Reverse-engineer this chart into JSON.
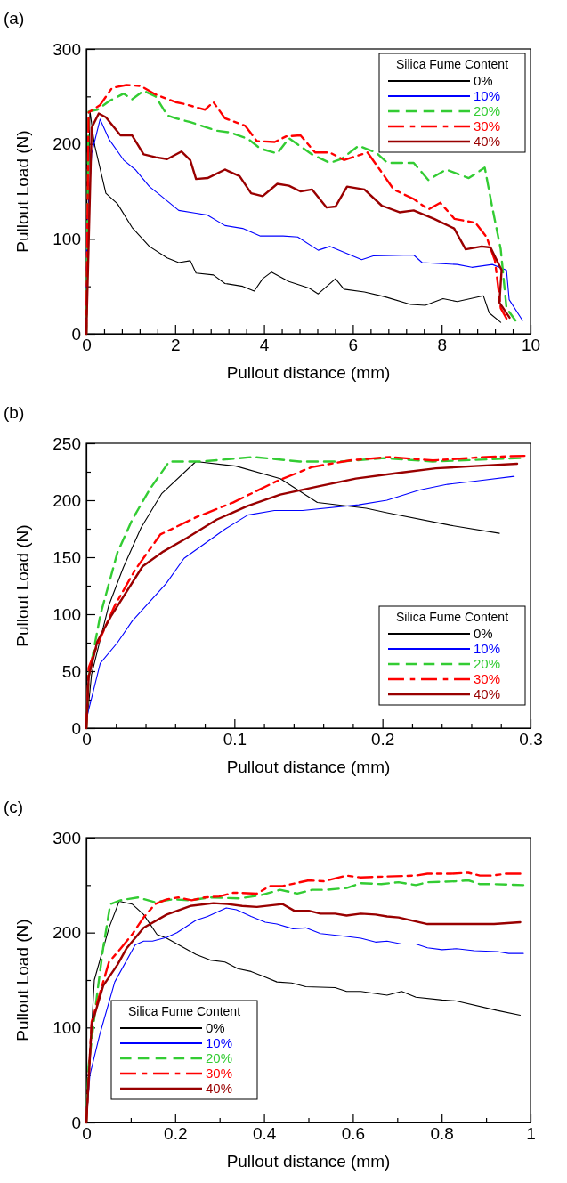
{
  "chart_data": [
    {
      "type": "line",
      "title": "(a)",
      "xlabel": "Pullout distance (mm)",
      "ylabel": "Pullout Load (N)",
      "legend_title": "Silica Fume Content",
      "legend": "top right",
      "xlim": [
        0,
        10
      ],
      "ylim": [
        0,
        300
      ],
      "xticks": [
        0,
        {
          "value": 0.4,
          "label": null
        },
        {
          "value": 0.8,
          "label": null
        },
        {
          "value": 1.2,
          "label": null
        },
        {
          "value": 1.6,
          "label": null
        },
        2,
        {
          "value": 2.4,
          "label": null
        },
        {
          "value": 2.8,
          "label": null
        },
        {
          "value": 3.2,
          "label": null
        },
        {
          "value": 3.6,
          "label": null
        },
        4,
        {
          "value": 4.4,
          "label": null
        },
        {
          "value": 4.8,
          "label": null
        },
        {
          "value": 5.2,
          "label": null
        },
        {
          "value": 5.6,
          "label": null
        },
        6,
        {
          "value": 6.4,
          "label": null
        },
        {
          "value": 6.8,
          "label": null
        },
        {
          "value": 7.2,
          "label": null
        },
        {
          "value": 7.6,
          "label": null
        },
        8,
        {
          "value": 8.4,
          "label": null
        },
        {
          "value": 8.8,
          "label": null
        },
        {
          "value": 9.2,
          "label": null
        },
        {
          "value": 9.6,
          "label": null
        },
        10
      ],
      "yticks": [
        0,
        {
          "value": 50,
          "label": null
        },
        100,
        {
          "value": 150,
          "label": null
        },
        200,
        {
          "value": 250,
          "label": null
        },
        300
      ],
      "series": [
        {
          "name": "0%",
          "color": "#000000",
          "line_style": "solid",
          "x": [
            0,
            0.08,
            0.18,
            0.44,
            0.7,
            1.03,
            1.42,
            1.82,
            2.08,
            2.34,
            2.47,
            2.86,
            3.12,
            3.52,
            3.78,
            3.97,
            4.17,
            4.56,
            5.02,
            5.22,
            5.61,
            5.8,
            6.26,
            6.72,
            7.3,
            7.63,
            8.03,
            8.35,
            8.94,
            9.07,
            9.33
          ],
          "values": [
            0,
            235,
            200,
            148,
            137,
            112,
            92,
            80,
            75,
            77,
            64,
            62,
            53,
            50,
            45,
            58,
            65,
            55,
            48,
            42,
            58,
            47,
            44,
            39,
            31,
            30,
            37,
            34,
            40,
            22,
            12
          ]
        },
        {
          "name": "10%",
          "color": "#0000ff",
          "line_style": "solid",
          "x": [
            0,
            0.01,
            0.12,
            0.31,
            0.51,
            0.84,
            1.1,
            1.42,
            1.69,
            2.08,
            2.47,
            2.73,
            3.12,
            3.52,
            3.92,
            4.43,
            4.76,
            5.22,
            5.48,
            6.2,
            6.46,
            7.37,
            7.56,
            8.35,
            8.68,
            9.14,
            9.46,
            9.52,
            9.82
          ],
          "values": [
            0,
            100,
            190,
            226,
            205,
            183,
            173,
            155,
            145,
            130,
            127,
            125,
            114,
            111,
            103,
            103,
            102,
            88,
            92,
            78,
            82,
            83,
            75,
            73,
            70,
            73,
            67,
            36,
            14
          ]
        },
        {
          "name": "20%",
          "color": "#33cc33",
          "line_style": "dashed",
          "x": [
            0,
            0.05,
            0.25,
            0.51,
            0.84,
            1.03,
            1.29,
            1.56,
            1.82,
            2.01,
            2.34,
            2.6,
            2.93,
            3.25,
            3.65,
            3.92,
            4.3,
            4.56,
            5.08,
            5.48,
            5.74,
            6.13,
            6.52,
            6.78,
            7.37,
            7.7,
            8.1,
            8.61,
            8.97,
            9.14,
            9.33,
            9.46,
            9.66
          ],
          "values": [
            0,
            234,
            236,
            245,
            253,
            247,
            256,
            250,
            230,
            227,
            223,
            219,
            214,
            212,
            205,
            195,
            190,
            206,
            189,
            180,
            184,
            198,
            191,
            180,
            180,
            162,
            173,
            164,
            175,
            133,
            89,
            27,
            14
          ]
        },
        {
          "name": "30%",
          "color": "#ff0000",
          "line_style": "dashdot",
          "x": [
            0,
            0.05,
            0.31,
            0.58,
            0.9,
            1.23,
            1.56,
            2.01,
            2.21,
            2.67,
            2.86,
            3.12,
            3.58,
            3.84,
            4.24,
            4.5,
            4.82,
            5.15,
            5.48,
            5.8,
            6.33,
            6.65,
            6.92,
            7.37,
            7.7,
            7.97,
            8.29,
            8.76,
            9.01,
            9.2,
            9.33,
            9.46
          ],
          "values": [
            0,
            233,
            241,
            259,
            262,
            261,
            252,
            244,
            242,
            236,
            244,
            227,
            219,
            203,
            202,
            208,
            209,
            191,
            191,
            183,
            191,
            170,
            152,
            142,
            131,
            138,
            121,
            117,
            102,
            77,
            27,
            16
          ]
        },
        {
          "name": "40%",
          "color": "#990000",
          "line_style": "solid",
          "x": [
            0,
            0.12,
            0.28,
            0.44,
            0.77,
            1.03,
            1.29,
            1.56,
            1.82,
            2.14,
            2.34,
            2.47,
            2.73,
            3.12,
            3.45,
            3.71,
            3.97,
            4.3,
            4.56,
            4.82,
            5.08,
            5.41,
            5.61,
            5.87,
            6.26,
            6.65,
            7.05,
            7.37,
            7.83,
            8.28,
            8.54,
            8.9,
            9.1,
            9.35,
            9.3,
            9.53
          ],
          "values": [
            0,
            217,
            232,
            228,
            209,
            209,
            189,
            186,
            184,
            192,
            183,
            163,
            164,
            173,
            166,
            148,
            145,
            158,
            156,
            150,
            152,
            133,
            134,
            155,
            152,
            135,
            128,
            130,
            121,
            111,
            89,
            92,
            91,
            67,
            33,
            17
          ]
        }
      ]
    },
    {
      "type": "line",
      "title": "(b)",
      "xlabel": "Pullout distance (mm)",
      "ylabel": "Pullout Load (N)",
      "legend_title": "Silica Fume Content",
      "legend": "bottom right",
      "xlim": [
        0,
        0.3
      ],
      "ylim": [
        0,
        250
      ],
      "xticks": [
        0,
        {
          "value": 0.02,
          "label": null
        },
        {
          "value": 0.04,
          "label": null
        },
        {
          "value": 0.06,
          "label": null
        },
        {
          "value": 0.08,
          "label": null
        },
        0.1,
        {
          "value": 0.12,
          "label": null
        },
        {
          "value": 0.14,
          "label": null
        },
        {
          "value": 0.16,
          "label": null
        },
        {
          "value": 0.18,
          "label": null
        },
        0.2,
        {
          "value": 0.22,
          "label": null
        },
        {
          "value": 0.24,
          "label": null
        },
        {
          "value": 0.26,
          "label": null
        },
        {
          "value": 0.28,
          "label": null
        },
        0.3
      ],
      "yticks": [
        0,
        {
          "value": 25,
          "label": null
        },
        50,
        {
          "value": 75,
          "label": null
        },
        100,
        {
          "value": 125,
          "label": null
        },
        150,
        {
          "value": 175,
          "label": null
        },
        200,
        {
          "value": 225,
          "label": null
        },
        250
      ],
      "series": [
        {
          "name": "0%",
          "color": "#000000",
          "line_style": "solid",
          "x": [
            0,
            0.0035,
            0.015,
            0.025,
            0.037,
            0.051,
            0.074,
            0.101,
            0.131,
            0.156,
            0.189,
            0.203,
            0.246,
            0.279
          ],
          "values": [
            0,
            47,
            107,
            141,
            176,
            206,
            234,
            230,
            219,
            198,
            193,
            189,
            178,
            171
          ]
        },
        {
          "name": "10%",
          "color": "#0000ff",
          "line_style": "solid",
          "x": [
            0,
            0.0006,
            0.0094,
            0.021,
            0.031,
            0.054,
            0.066,
            0.094,
            0.109,
            0.127,
            0.146,
            0.184,
            0.203,
            0.225,
            0.244,
            0.264,
            0.289
          ],
          "values": [
            0,
            11,
            57,
            75,
            94,
            127,
            149,
            175,
            187,
            191,
            191,
            196,
            200,
            209,
            214,
            217,
            221
          ]
        },
        {
          "name": "20%",
          "color": "#33cc33",
          "line_style": "dashed",
          "x": [
            0,
            0.0016,
            0.0094,
            0.021,
            0.031,
            0.043,
            0.056,
            0.078,
            0.113,
            0.144,
            0.172,
            0.201,
            0.234,
            0.293
          ],
          "values": [
            0,
            45,
            99,
            154,
            183,
            210,
            234,
            234,
            238,
            234,
            234,
            237,
            234,
            237
          ]
        },
        {
          "name": "30%",
          "color": "#ff0000",
          "line_style": "dashdot",
          "x": [
            0,
            0.0016,
            0.0074,
            0.019,
            0.033,
            0.05,
            0.074,
            0.099,
            0.129,
            0.152,
            0.178,
            0.205,
            0.234,
            0.27,
            0.296
          ],
          "values": [
            0,
            53,
            73,
            107,
            139,
            170,
            185,
            198,
            217,
            229,
            235,
            238,
            235,
            238,
            239
          ]
        },
        {
          "name": "40%",
          "color": "#990000",
          "line_style": "solid",
          "x": [
            0,
            0.0016,
            0.0074,
            0.017,
            0.038,
            0.052,
            0.068,
            0.088,
            0.109,
            0.131,
            0.156,
            0.182,
            0.211,
            0.236,
            0.262,
            0.291
          ],
          "values": [
            0,
            45,
            76,
            99,
            142,
            155,
            167,
            183,
            195,
            205,
            212,
            219,
            224,
            228,
            230,
            232
          ]
        }
      ]
    },
    {
      "type": "line",
      "title": "(c)",
      "xlabel": "Pullout distance (mm)",
      "ylabel": "Pullout Load (N)",
      "legend_title": "Silica Fume Content",
      "legend": "bottom left",
      "xlim": [
        0,
        1
      ],
      "ylim": [
        0,
        300
      ],
      "xticks": [
        0,
        {
          "value": 0.1,
          "label": null
        },
        0.2,
        {
          "value": 0.3,
          "label": null
        },
        0.4,
        {
          "value": 0.5,
          "label": null
        },
        0.6,
        {
          "value": 0.7,
          "label": null
        },
        0.8,
        {
          "value": 0.9,
          "label": null
        },
        1
      ],
      "yticks": [
        0,
        {
          "value": 50,
          "label": null
        },
        100,
        {
          "value": 150,
          "label": null
        },
        200,
        {
          "value": 250,
          "label": null
        },
        300
      ],
      "series": [
        {
          "name": "0%",
          "color": "#000000",
          "line_style": "solid",
          "x": [
            0,
            0.018,
            0.051,
            0.074,
            0.103,
            0.129,
            0.159,
            0.181,
            0.247,
            0.279,
            0.312,
            0.341,
            0.371,
            0.403,
            0.429,
            0.462,
            0.494,
            0.56,
            0.586,
            0.618,
            0.677,
            0.71,
            0.742,
            0.801,
            0.833,
            0.925,
            0.977
          ],
          "values": [
            0,
            150,
            205,
            233,
            230,
            219,
            198,
            194,
            177,
            171,
            169,
            162,
            159,
            153,
            148,
            147,
            143,
            142,
            138,
            138,
            134,
            138,
            132,
            129,
            128,
            118,
            113
          ]
        },
        {
          "name": "10%",
          "color": "#0000ff",
          "line_style": "solid",
          "x": [
            0,
            0.008,
            0.031,
            0.064,
            0.11,
            0.129,
            0.149,
            0.181,
            0.204,
            0.247,
            0.273,
            0.315,
            0.338,
            0.371,
            0.403,
            0.429,
            0.465,
            0.494,
            0.527,
            0.586,
            0.618,
            0.651,
            0.677,
            0.71,
            0.742,
            0.768,
            0.801,
            0.833,
            0.873,
            0.925,
            0.951,
            0.984
          ],
          "values": [
            0,
            50,
            94,
            148,
            187,
            191,
            191,
            195,
            200,
            213,
            217,
            226,
            224,
            217,
            211,
            209,
            204,
            205,
            199,
            196,
            194,
            190,
            191,
            188,
            188,
            184,
            182,
            183,
            181,
            180,
            178,
            178
          ]
        },
        {
          "name": "20%",
          "color": "#33cc33",
          "line_style": "dashed",
          "x": [
            0,
            0.005,
            0.025,
            0.038,
            0.054,
            0.077,
            0.116,
            0.155,
            0.194,
            0.234,
            0.279,
            0.344,
            0.39,
            0.436,
            0.475,
            0.508,
            0.54,
            0.586,
            0.618,
            0.664,
            0.703,
            0.742,
            0.768,
            0.833,
            0.86,
            0.886,
            0.918,
            0.984
          ],
          "values": [
            0,
            59,
            138,
            184,
            230,
            234,
            237,
            232,
            235,
            234,
            237,
            236,
            239,
            245,
            241,
            245,
            245,
            247,
            252,
            251,
            253,
            250,
            253,
            254,
            255,
            251,
            251,
            250
          ]
        },
        {
          "name": "30%",
          "color": "#ff0000",
          "line_style": "dashdot",
          "x": [
            0,
            0.012,
            0.051,
            0.077,
            0.103,
            0.129,
            0.155,
            0.181,
            0.207,
            0.237,
            0.266,
            0.299,
            0.331,
            0.384,
            0.413,
            0.442,
            0.501,
            0.534,
            0.586,
            0.618,
            0.671,
            0.742,
            0.768,
            0.82,
            0.86,
            0.886,
            0.912,
            0.945,
            0.977
          ],
          "values": [
            0,
            106,
            169,
            183,
            198,
            216,
            230,
            235,
            237,
            234,
            237,
            238,
            242,
            241,
            249,
            249,
            255,
            254,
            260,
            258,
            259,
            260,
            262,
            262,
            263,
            260,
            260,
            262,
            262
          ]
        },
        {
          "name": "40%",
          "color": "#990000",
          "line_style": "solid",
          "x": [
            0,
            0.012,
            0.038,
            0.07,
            0.09,
            0.129,
            0.181,
            0.234,
            0.286,
            0.318,
            0.351,
            0.384,
            0.442,
            0.468,
            0.501,
            0.527,
            0.56,
            0.586,
            0.618,
            0.651,
            0.677,
            0.703,
            0.768,
            0.833,
            0.918,
            0.977
          ],
          "values": [
            0,
            103,
            144,
            166,
            183,
            205,
            219,
            228,
            231,
            230,
            228,
            227,
            230,
            223,
            223,
            220,
            220,
            218,
            220,
            219,
            217,
            216,
            209,
            209,
            209,
            211
          ]
        }
      ]
    }
  ]
}
